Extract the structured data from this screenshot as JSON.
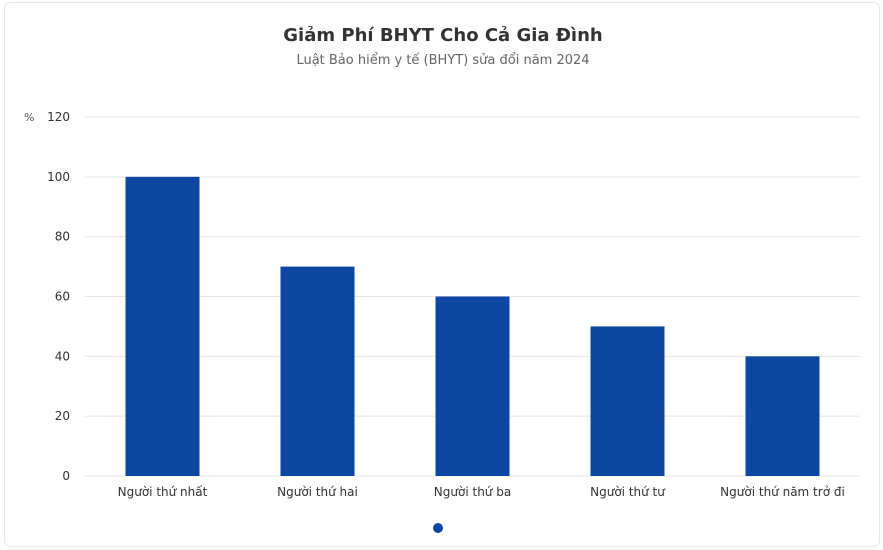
{
  "title": "Giảm Phí BHYT Cho Cả Gia Đình",
  "subtitle": "Luật Bảo hiểm y tế (BHYT) sửa đổi năm 2024",
  "colors": {
    "bar": "#0d47a1",
    "grid": "#e6e6e6",
    "legend_dot": "#0d47a1"
  },
  "chart_data": {
    "type": "bar",
    "title": "Giảm Phí BHYT Cho Cả Gia Đình",
    "subtitle": "Luật Bảo hiểm y tế (BHYT) sửa đổi năm 2024",
    "y_unit": "%",
    "categories": [
      "Người thứ nhất",
      "Người thứ hai",
      "Người thứ ba",
      "Người thứ tư",
      "Người thứ năm trở đi"
    ],
    "values": [
      100,
      70,
      60,
      50,
      40
    ],
    "ylim": [
      0,
      120
    ],
    "yticks": [
      0,
      20,
      40,
      60,
      80,
      100,
      120
    ],
    "grid": true,
    "legend": "bottom-center"
  }
}
